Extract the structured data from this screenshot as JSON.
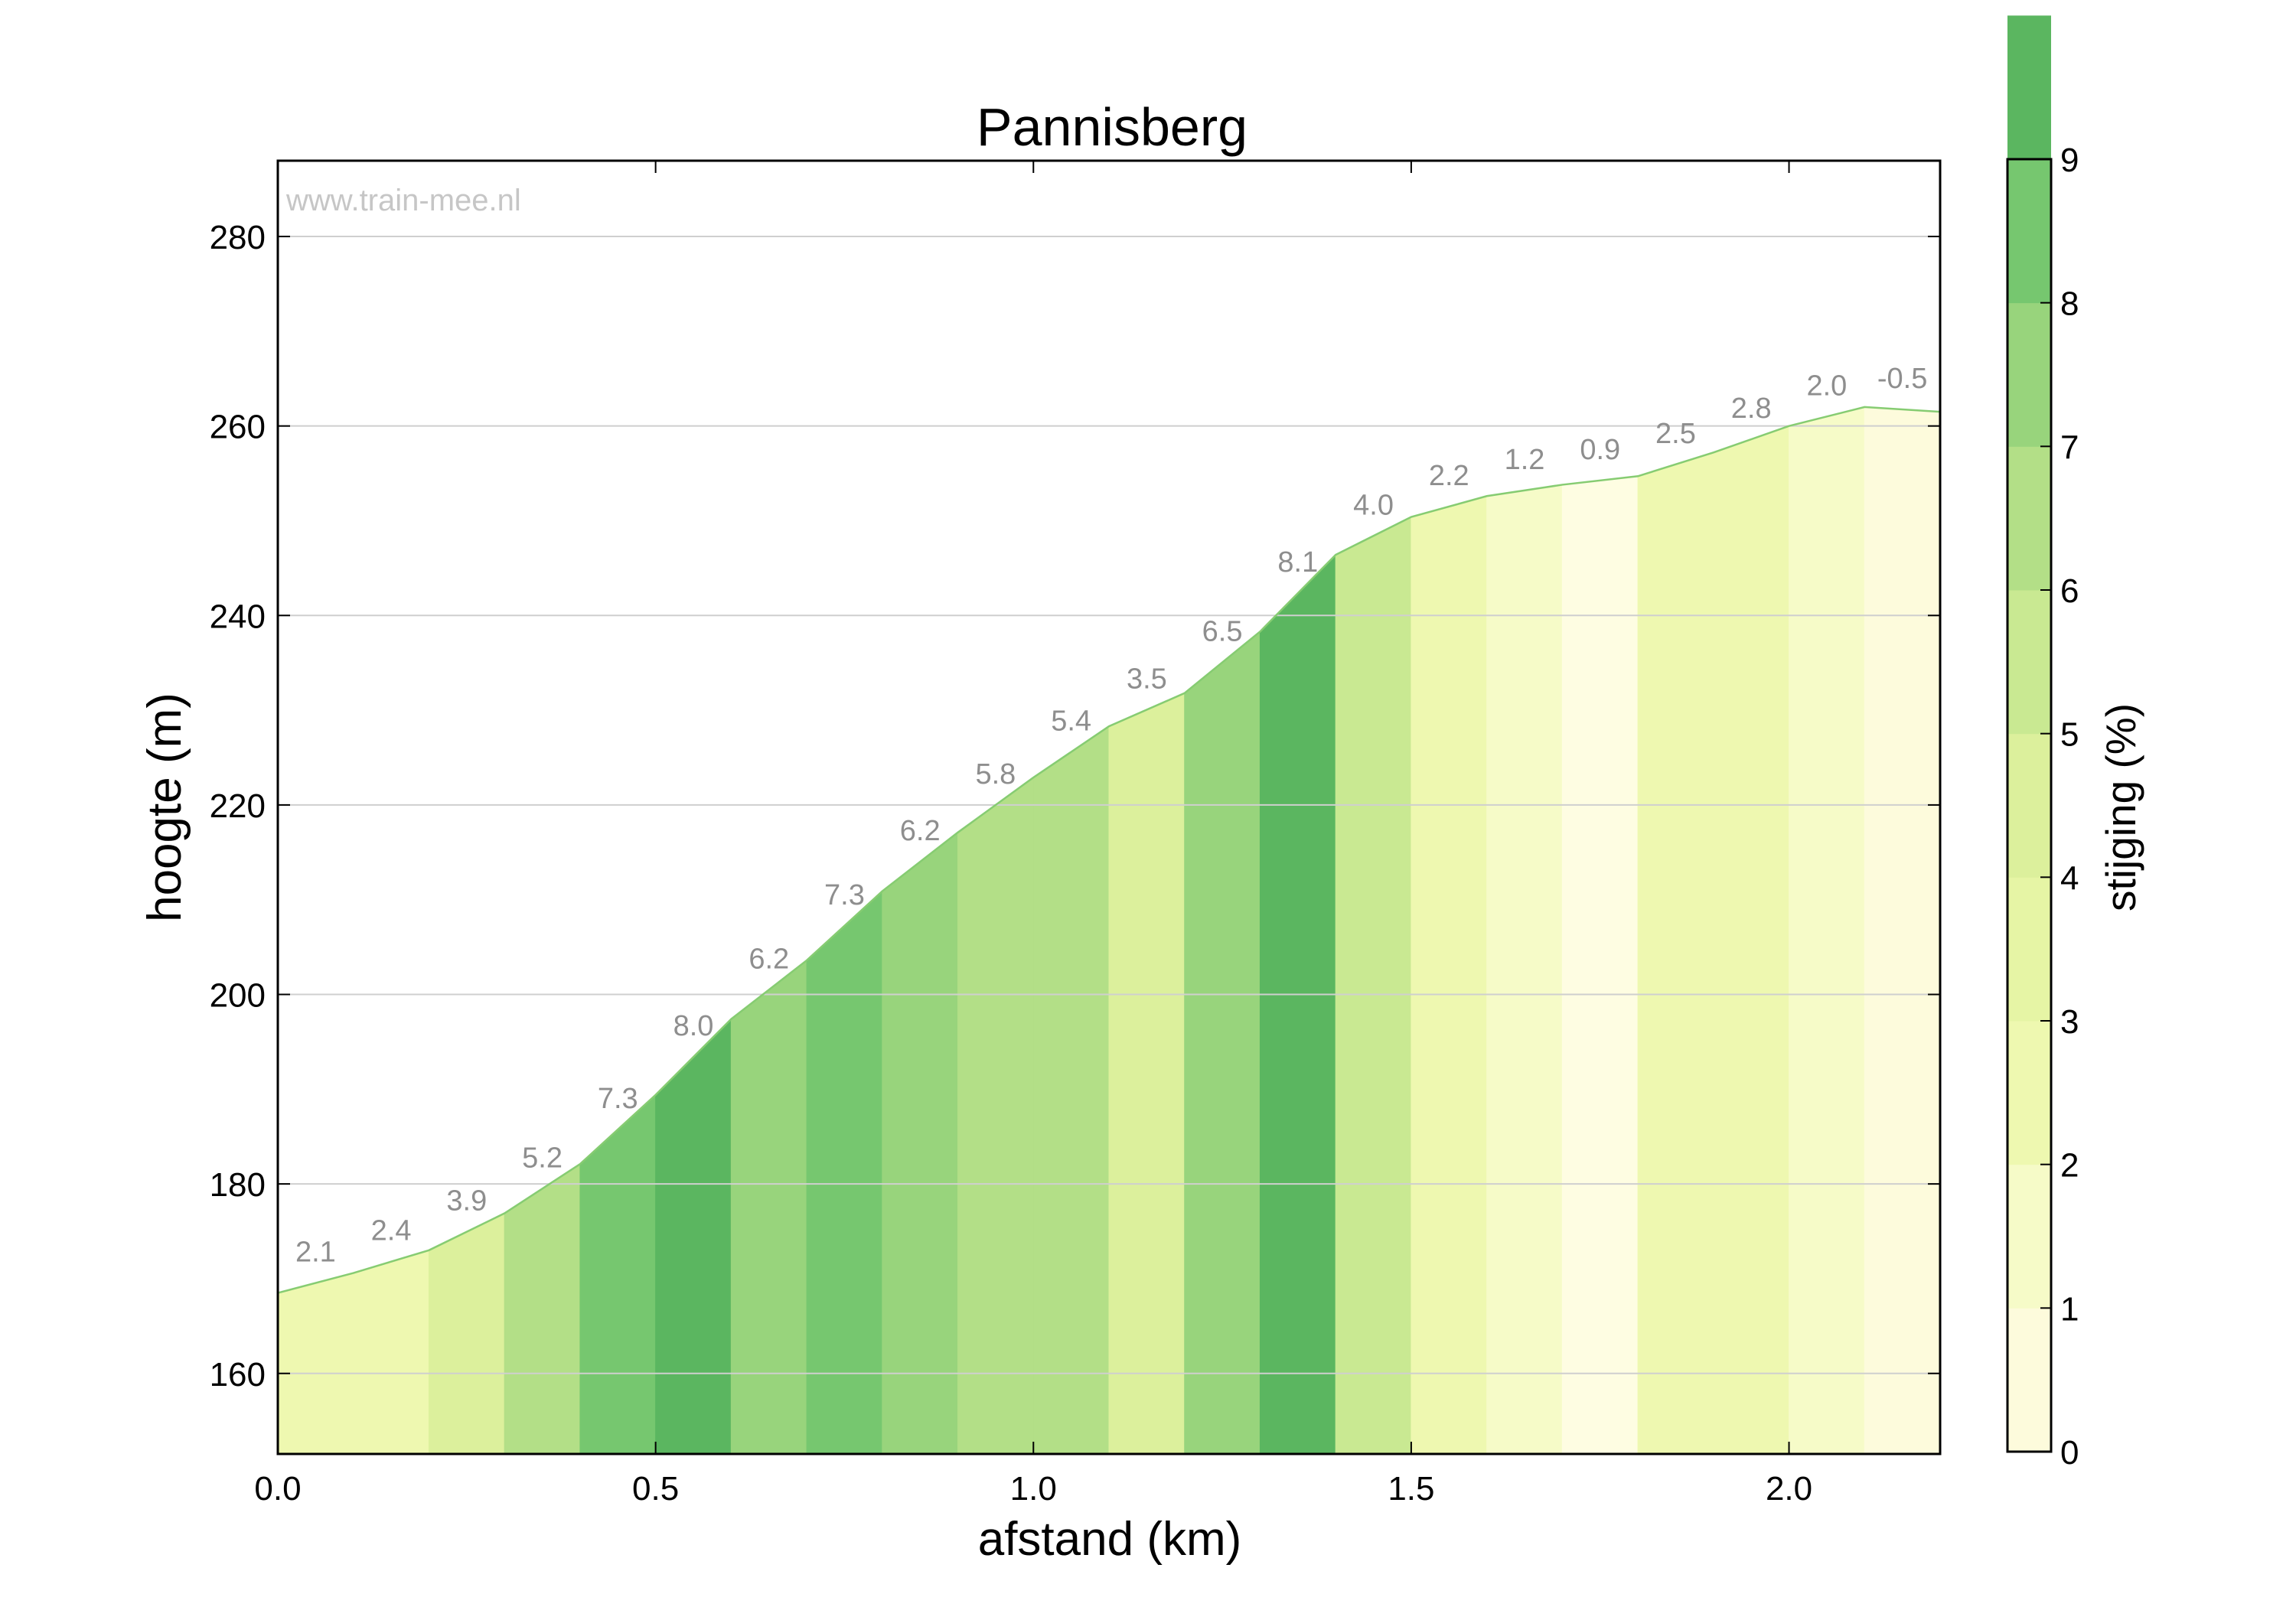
{
  "chart_data": {
    "type": "area",
    "title": "Pannisberg",
    "xlabel": "afstand (km)",
    "ylabel": "hoogte (m)",
    "watermark": "www.train-mee.nl",
    "xlim": [
      0,
      2.2
    ],
    "ylim": [
      151.5,
      288
    ],
    "x_ticks": [
      "0.0",
      "0.5",
      "1.0",
      "1.5",
      "2.0"
    ],
    "y_ticks": [
      "160",
      "180",
      "200",
      "220",
      "240",
      "260",
      "280"
    ],
    "grid": "horizontal",
    "elevation_profile": {
      "x": [
        0,
        0.1,
        0.2,
        0.3,
        0.4,
        0.5,
        0.6,
        0.7,
        0.8,
        0.9,
        1.0,
        1.1,
        1.2,
        1.3,
        1.4,
        1.5,
        1.6,
        1.7,
        1.8,
        1.9,
        2.0,
        2.1,
        2.2
      ],
      "y": [
        168.5,
        170.6,
        173.0,
        176.9,
        182.1,
        189.4,
        197.4,
        203.6,
        210.9,
        217.1,
        222.9,
        228.3,
        231.8,
        238.3,
        246.4,
        250.4,
        252.6,
        253.8,
        254.7,
        257.2,
        260.0,
        262.0,
        261.5
      ]
    },
    "segments": [
      {
        "start": 0.0,
        "end": 0.1,
        "gradient": "2.1",
        "color": "#eef8b0"
      },
      {
        "start": 0.1,
        "end": 0.2,
        "gradient": "2.4",
        "color": "#eef8b0"
      },
      {
        "start": 0.2,
        "end": 0.3,
        "gradient": "3.9",
        "color": "#dcf09c"
      },
      {
        "start": 0.3,
        "end": 0.4,
        "gradient": "5.2",
        "color": "#b3df87"
      },
      {
        "start": 0.4,
        "end": 0.5,
        "gradient": "7.3",
        "color": "#76c76f"
      },
      {
        "start": 0.5,
        "end": 0.6,
        "gradient": "8.0",
        "color": "#5bb660"
      },
      {
        "start": 0.6,
        "end": 0.7,
        "gradient": "6.2",
        "color": "#98d47c"
      },
      {
        "start": 0.7,
        "end": 0.8,
        "gradient": "7.3",
        "color": "#76c76f"
      },
      {
        "start": 0.8,
        "end": 0.9,
        "gradient": "6.2",
        "color": "#98d47c"
      },
      {
        "start": 0.9,
        "end": 1.0,
        "gradient": "5.8",
        "color": "#b3df87"
      },
      {
        "start": 1.0,
        "end": 1.1,
        "gradient": "5.4",
        "color": "#b3df87"
      },
      {
        "start": 1.1,
        "end": 1.2,
        "gradient": "3.5",
        "color": "#dcf09c"
      },
      {
        "start": 1.2,
        "end": 1.3,
        "gradient": "6.5",
        "color": "#98d47c"
      },
      {
        "start": 1.3,
        "end": 1.4,
        "gradient": "8.1",
        "color": "#5bb660"
      },
      {
        "start": 1.4,
        "end": 1.5,
        "gradient": "4.0",
        "color": "#c9e992"
      },
      {
        "start": 1.5,
        "end": 1.6,
        "gradient": "2.2",
        "color": "#eef8b0"
      },
      {
        "start": 1.6,
        "end": 1.7,
        "gradient": "1.2",
        "color": "#f6fbc8"
      },
      {
        "start": 1.7,
        "end": 1.8,
        "gradient": "0.9",
        "color": "#fefde2"
      },
      {
        "start": 1.8,
        "end": 1.9,
        "gradient": "2.5",
        "color": "#eef8b0"
      },
      {
        "start": 1.9,
        "end": 2.0,
        "gradient": "2.8",
        "color": "#eef8b0"
      },
      {
        "start": 2.0,
        "end": 2.1,
        "gradient": "2.0",
        "color": "#f6fbc8"
      },
      {
        "start": 2.1,
        "end": 2.2,
        "gradient": "-0.5",
        "color": "#fdfbdc"
      }
    ],
    "colorbar": {
      "label": "stijging (%)",
      "range": [
        0,
        9
      ],
      "ticks": [
        "0",
        "1",
        "2",
        "3",
        "4",
        "5",
        "6",
        "7",
        "8",
        "9"
      ],
      "colors": [
        "#fdfbdc",
        "#f6fbc8",
        "#eef8b0",
        "#e6f5a5",
        "#dcf09c",
        "#c9e992",
        "#b3df87",
        "#98d47c",
        "#76c76f",
        "#5bb660"
      ]
    }
  }
}
